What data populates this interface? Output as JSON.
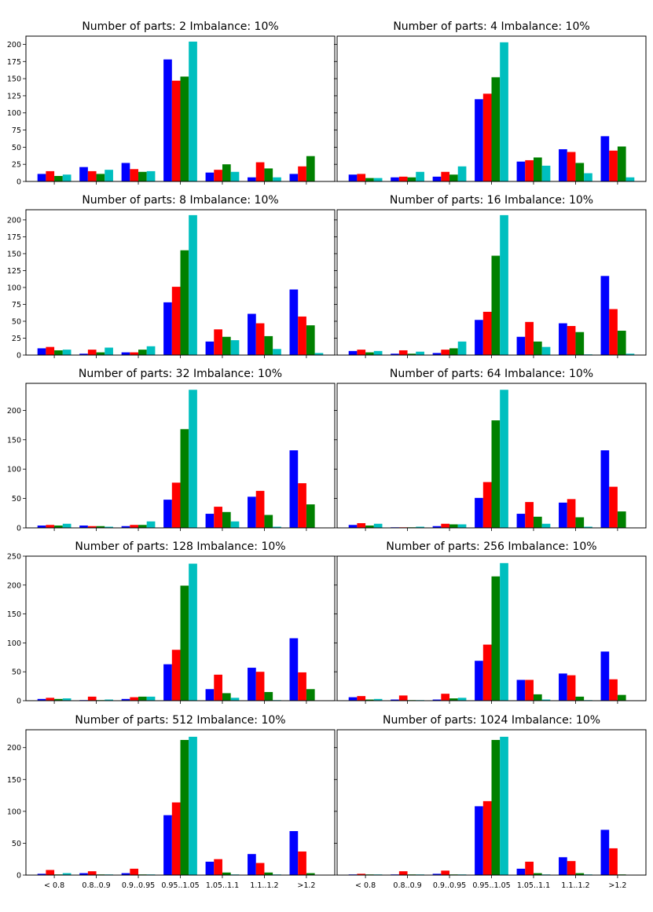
{
  "chart_data": {
    "type": "bar",
    "categories": [
      "< 0.8",
      "0.8..0.9",
      "0.9..0.95",
      "0.95..1.05",
      "1.05..1.1",
      "1.1..1.2",
      ">1.2"
    ],
    "series_colors": [
      "#0000ff",
      "#ff0000",
      "#008000",
      "#00bfbf"
    ],
    "imbalance_label": "Imbalance: 10%",
    "parts_label": "Number of parts:",
    "panels": [
      {
        "parts": "2",
        "ylim": [
          0,
          212
        ],
        "yticks": [
          0,
          25,
          50,
          75,
          100,
          125,
          150,
          175,
          200
        ],
        "series": [
          [
            11,
            21,
            27,
            178,
            13,
            6,
            11
          ],
          [
            15,
            15,
            18,
            147,
            17,
            28,
            22
          ],
          [
            8,
            11,
            14,
            153,
            25,
            19,
            37
          ],
          [
            10,
            17,
            15,
            204,
            14,
            6,
            0
          ]
        ]
      },
      {
        "parts": "4",
        "ylim": [
          0,
          212
        ],
        "yticks": [
          0,
          25,
          50,
          75,
          100,
          125,
          150,
          175,
          200
        ],
        "series": [
          [
            10,
            6,
            7,
            120,
            29,
            47,
            66
          ],
          [
            11,
            7,
            14,
            128,
            31,
            43,
            45
          ],
          [
            5,
            6,
            10,
            152,
            35,
            27,
            51
          ],
          [
            5,
            14,
            22,
            203,
            23,
            12,
            6
          ]
        ]
      },
      {
        "parts": "8",
        "ylim": [
          0,
          215
        ],
        "yticks": [
          0,
          25,
          50,
          75,
          100,
          125,
          150,
          175,
          200
        ],
        "series": [
          [
            10,
            2,
            4,
            78,
            20,
            61,
            97
          ],
          [
            12,
            8,
            4,
            101,
            38,
            47,
            57
          ],
          [
            7,
            4,
            8,
            155,
            27,
            28,
            44
          ],
          [
            8,
            11,
            13,
            207,
            22,
            9,
            3
          ]
        ]
      },
      {
        "parts": "16",
        "ylim": [
          0,
          215
        ],
        "yticks": [
          0,
          25,
          50,
          75,
          100,
          125,
          150,
          175,
          200
        ],
        "series": [
          [
            6,
            2,
            3,
            52,
            27,
            47,
            117
          ],
          [
            8,
            7,
            8,
            64,
            49,
            43,
            68
          ],
          [
            4,
            2,
            10,
            147,
            20,
            34,
            36
          ],
          [
            6,
            5,
            20,
            207,
            12,
            1,
            2
          ]
        ]
      },
      {
        "parts": "32",
        "ylim": [
          0,
          246
        ],
        "yticks": [
          0,
          50,
          100,
          150,
          200
        ],
        "series": [
          [
            4,
            4,
            3,
            48,
            24,
            53,
            132
          ],
          [
            5,
            3,
            5,
            77,
            36,
            63,
            76
          ],
          [
            4,
            3,
            5,
            168,
            27,
            22,
            40
          ],
          [
            7,
            2,
            11,
            235,
            11,
            2,
            0
          ]
        ]
      },
      {
        "parts": "64",
        "ylim": [
          0,
          246
        ],
        "yticks": [
          0,
          50,
          100,
          150,
          200
        ],
        "series": [
          [
            5,
            1,
            3,
            51,
            24,
            43,
            132
          ],
          [
            8,
            1,
            7,
            78,
            44,
            49,
            70
          ],
          [
            4,
            1,
            6,
            183,
            19,
            18,
            28
          ],
          [
            7,
            2,
            6,
            235,
            7,
            2,
            0
          ]
        ]
      },
      {
        "parts": "128",
        "ylim": [
          0,
          250
        ],
        "yticks": [
          0,
          50,
          100,
          150,
          200,
          250
        ],
        "series": [
          [
            3,
            1,
            3,
            63,
            20,
            57,
            108
          ],
          [
            5,
            7,
            6,
            88,
            45,
            50,
            49
          ],
          [
            3,
            1,
            7,
            199,
            13,
            15,
            20
          ],
          [
            4,
            2,
            7,
            237,
            5,
            1,
            0
          ]
        ]
      },
      {
        "parts": "256",
        "ylim": [
          0,
          250
        ],
        "yticks": [
          0,
          50,
          100,
          150,
          200,
          250
        ],
        "series": [
          [
            6,
            2,
            2,
            69,
            36,
            47,
            85
          ],
          [
            8,
            9,
            12,
            97,
            36,
            44,
            37
          ],
          [
            2,
            1,
            4,
            215,
            11,
            7,
            10
          ],
          [
            3,
            1,
            5,
            238,
            2,
            1,
            0
          ]
        ]
      },
      {
        "parts": "512",
        "ylim": [
          0,
          228
        ],
        "yticks": [
          0,
          50,
          100,
          150,
          200
        ],
        "series": [
          [
            2,
            3,
            3,
            94,
            21,
            33,
            69
          ],
          [
            8,
            6,
            10,
            114,
            25,
            19,
            37
          ],
          [
            1,
            1,
            1,
            212,
            4,
            4,
            3
          ],
          [
            3,
            1,
            1,
            217,
            1,
            1,
            0
          ]
        ]
      },
      {
        "parts": "1024",
        "ylim": [
          0,
          228
        ],
        "yticks": [
          0,
          50,
          100,
          150,
          200
        ],
        "series": [
          [
            1,
            1,
            2,
            108,
            10,
            28,
            71
          ],
          [
            2,
            6,
            7,
            116,
            21,
            22,
            42
          ],
          [
            1,
            1,
            1,
            212,
            3,
            3,
            1
          ],
          [
            1,
            1,
            1,
            217,
            1,
            1,
            0
          ]
        ]
      }
    ]
  }
}
